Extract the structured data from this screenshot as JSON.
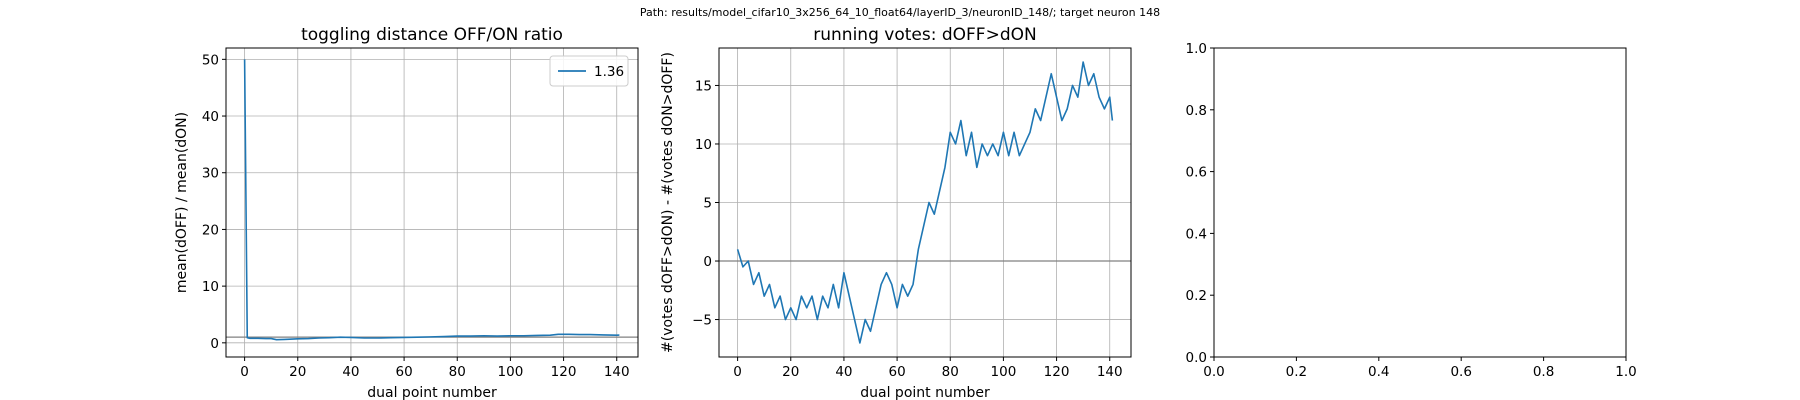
{
  "figure": {
    "suptitle": "Path: results/model_cifar10_3x256_64_10_float64/layerID_3/neuronID_148/; target neuron 148"
  },
  "chart_data": [
    {
      "type": "line",
      "title": "toggling distance OFF/ON ratio",
      "xlabel": "dual point number",
      "ylabel": "mean(dOFF) / mean(dON)",
      "xlim": [
        -7,
        148
      ],
      "ylim": [
        -2.5,
        52
      ],
      "xticks": [
        0,
        20,
        40,
        60,
        80,
        100,
        120,
        140
      ],
      "yticks": [
        0,
        10,
        20,
        30,
        40,
        50
      ],
      "grid": true,
      "hline": 1,
      "legend": {
        "position": "top-right",
        "entries": [
          "1.36"
        ]
      },
      "series": [
        {
          "name": "1.36",
          "x": [
            0,
            1,
            2,
            5,
            8,
            10,
            12,
            15,
            20,
            24,
            28,
            32,
            36,
            40,
            45,
            50,
            55,
            60,
            65,
            70,
            75,
            80,
            85,
            90,
            95,
            100,
            105,
            110,
            115,
            118,
            122,
            126,
            130,
            135,
            140,
            141
          ],
          "y": [
            50,
            0.9,
            0.8,
            0.8,
            0.75,
            0.75,
            0.55,
            0.6,
            0.7,
            0.75,
            0.85,
            0.9,
            1.0,
            0.95,
            0.85,
            0.85,
            0.9,
            0.95,
            1.0,
            1.05,
            1.1,
            1.2,
            1.2,
            1.25,
            1.2,
            1.25,
            1.25,
            1.3,
            1.35,
            1.5,
            1.5,
            1.45,
            1.45,
            1.4,
            1.35,
            1.36
          ]
        }
      ]
    },
    {
      "type": "line",
      "title": "running votes: dOFF>dON",
      "xlabel": "dual point number",
      "ylabel": "#(votes dOFF>dON) - #(votes dON>dOFF)",
      "xlim": [
        -7,
        148
      ],
      "ylim": [
        -8.2,
        18.2
      ],
      "xticks": [
        0,
        20,
        40,
        60,
        80,
        100,
        120,
        140
      ],
      "yticks": [
        -5,
        0,
        5,
        10,
        15
      ],
      "grid": true,
      "hline": 0,
      "series": [
        {
          "name": "",
          "x": [
            0,
            2,
            4,
            6,
            8,
            10,
            12,
            14,
            16,
            18,
            20,
            22,
            24,
            26,
            28,
            30,
            32,
            34,
            36,
            38,
            40,
            42,
            44,
            46,
            48,
            50,
            52,
            54,
            56,
            58,
            60,
            62,
            64,
            66,
            68,
            70,
            72,
            74,
            76,
            78,
            80,
            82,
            84,
            86,
            88,
            90,
            92,
            94,
            96,
            98,
            100,
            102,
            104,
            106,
            108,
            110,
            112,
            114,
            116,
            118,
            120,
            122,
            124,
            126,
            128,
            130,
            132,
            134,
            136,
            138,
            140,
            141
          ],
          "y": [
            1,
            -0.5,
            0,
            -2,
            -1,
            -3,
            -2,
            -4,
            -3,
            -5,
            -4,
            -5,
            -3,
            -4,
            -3,
            -5,
            -3,
            -4,
            -2,
            -4,
            -1,
            -3,
            -5,
            -7,
            -5,
            -6,
            -4,
            -2,
            -1,
            -2,
            -4,
            -2,
            -3,
            -2,
            1,
            3,
            5,
            4,
            6,
            8,
            11,
            10,
            12,
            9,
            11,
            8,
            10,
            9,
            10,
            9,
            11,
            9,
            11,
            9,
            10,
            11,
            13,
            12,
            14,
            16,
            14,
            12,
            13,
            15,
            14,
            17,
            15,
            16,
            14,
            13,
            14,
            12
          ]
        }
      ]
    },
    {
      "type": "line",
      "title": "",
      "xlabel": "",
      "ylabel": "",
      "xlim": [
        0,
        1
      ],
      "ylim": [
        0,
        1
      ],
      "xticks": [
        0.0,
        0.2,
        0.4,
        0.6,
        0.8,
        1.0
      ],
      "yticks": [
        0.0,
        0.2,
        0.4,
        0.6,
        0.8,
        1.0
      ],
      "grid": false,
      "series": []
    }
  ],
  "colors": {
    "line": "#1f77b4",
    "grid": "#b0b0b0",
    "hline": "#808080",
    "axis": "#000000"
  }
}
